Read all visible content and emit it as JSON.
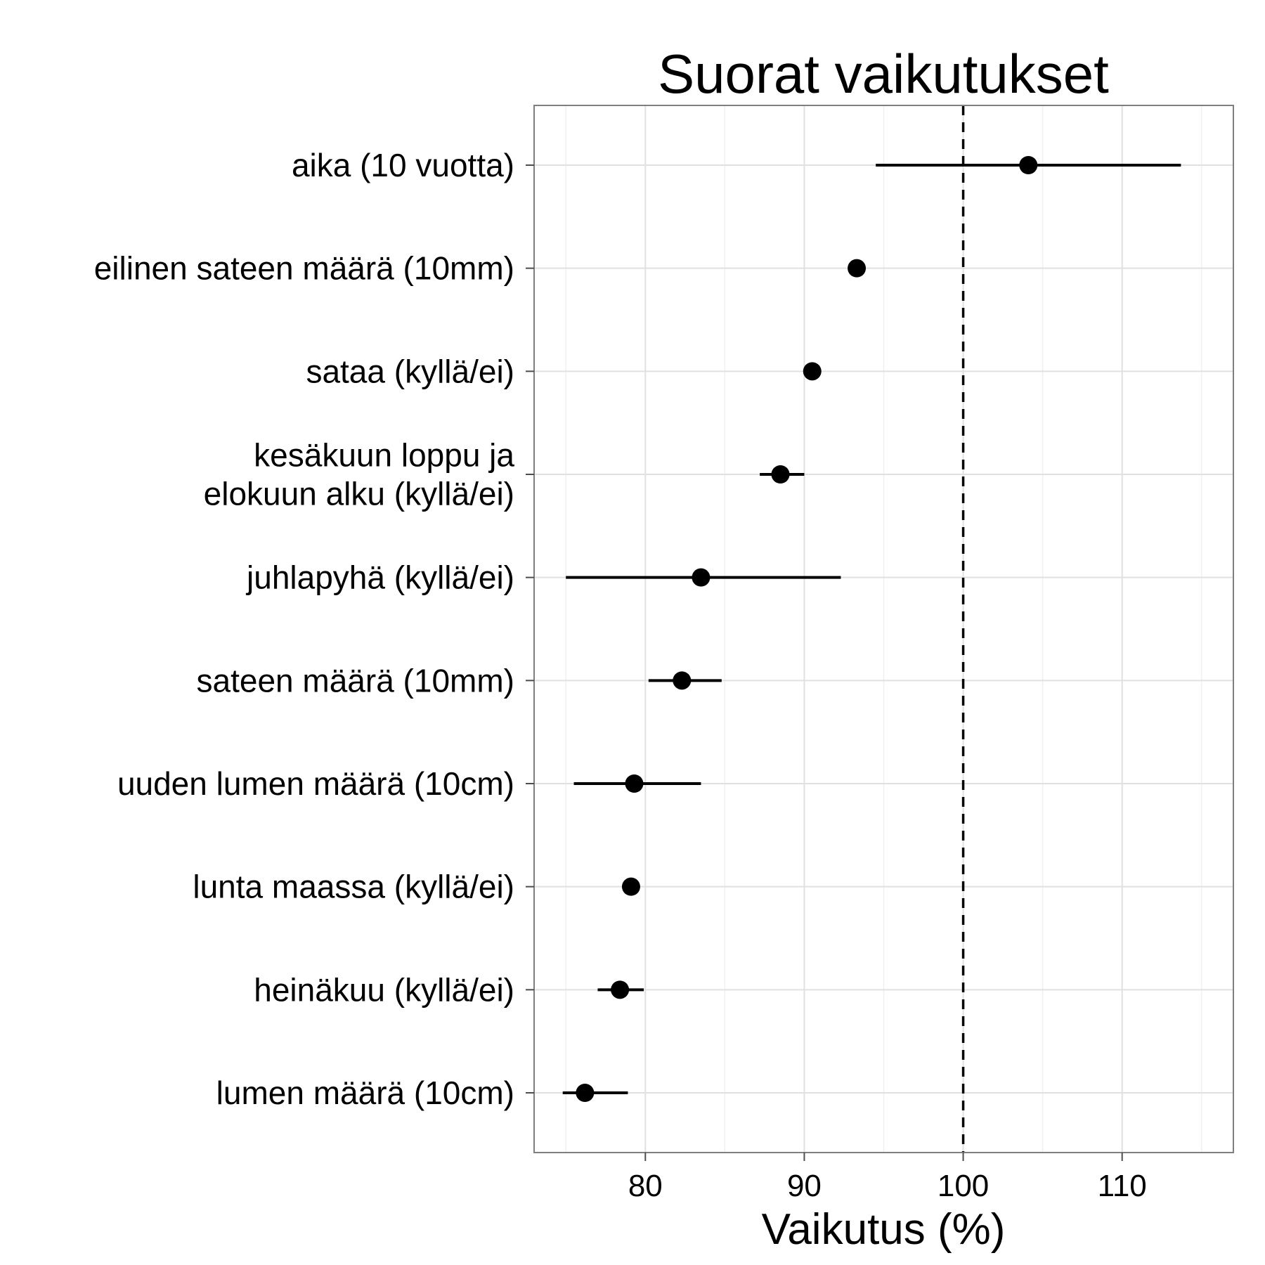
{
  "chart_data": {
    "type": "scatter",
    "subtype": "point-range",
    "title": "Suorat vaikutukset",
    "xlabel": "Vaikutus (%)",
    "ylabel": "",
    "xlim": [
      73,
      117
    ],
    "xticks": [
      80,
      90,
      100,
      110
    ],
    "reference_line": {
      "x": 100,
      "style": "dashed"
    },
    "grid": true,
    "categories": [
      [
        "aika (10 vuotta)"
      ],
      [
        "eilinen sateen määrä (10mm)"
      ],
      [
        "sataa (kyllä/ei)"
      ],
      [
        "kesäkuun loppu ja",
        "elokuun alku (kyllä/ei)"
      ],
      [
        "juhlapyhä (kyllä/ei)"
      ],
      [
        "sateen määrä (10mm)"
      ],
      [
        "uuden lumen määrä (10cm)"
      ],
      [
        "lunta maassa (kyllä/ei)"
      ],
      [
        "heinäkuu (kyllä/ei)"
      ],
      [
        "lumen määrä (10cm)"
      ]
    ],
    "estimates": [
      104.1,
      93.3,
      90.5,
      88.5,
      83.5,
      82.3,
      79.3,
      79.1,
      78.4,
      76.2
    ],
    "lower": [
      94.5,
      92.8,
      90.5,
      87.2,
      75.0,
      80.2,
      75.5,
      79.1,
      77.0,
      74.8
    ],
    "upper": [
      113.7,
      93.8,
      90.5,
      90.0,
      92.3,
      84.8,
      83.5,
      79.1,
      79.9,
      78.9
    ]
  }
}
